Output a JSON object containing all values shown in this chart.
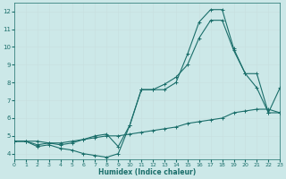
{
  "bg_color": "#cce8e8",
  "grid_color": "#afd4d4",
  "line_color": "#1a6e6a",
  "marker": "+",
  "xlabel": "Humidex (Indice chaleur)",
  "xlim": [
    0,
    23
  ],
  "ylim": [
    3.7,
    12.5
  ],
  "xticks": [
    0,
    1,
    2,
    3,
    4,
    5,
    6,
    7,
    8,
    9,
    10,
    11,
    12,
    13,
    14,
    15,
    16,
    17,
    18,
    19,
    20,
    21,
    22,
    23
  ],
  "yticks": [
    4,
    5,
    6,
    7,
    8,
    9,
    10,
    11,
    12
  ],
  "curve1_x": [
    0,
    1,
    2,
    3,
    4,
    5,
    6,
    7,
    8,
    9,
    10,
    11,
    12,
    13,
    14,
    15,
    16,
    17,
    18,
    19,
    20,
    21,
    22,
    23
  ],
  "curve1_y": [
    4.7,
    4.7,
    4.4,
    4.5,
    4.3,
    4.2,
    4.0,
    3.9,
    3.8,
    4.0,
    5.6,
    7.6,
    7.6,
    7.6,
    8.0,
    9.6,
    11.4,
    12.1,
    12.1,
    9.9,
    8.5,
    7.7,
    6.3,
    6.3
  ],
  "curve2_x": [
    0,
    1,
    2,
    3,
    4,
    5,
    6,
    7,
    8,
    9,
    10,
    11,
    12,
    13,
    14,
    15,
    16,
    17,
    18,
    19,
    20,
    21,
    22,
    23
  ],
  "curve2_y": [
    4.7,
    4.7,
    4.5,
    4.6,
    4.5,
    4.6,
    4.8,
    5.0,
    5.1,
    4.4,
    5.6,
    7.6,
    7.6,
    7.9,
    8.3,
    9.0,
    10.5,
    11.5,
    11.5,
    9.8,
    8.5,
    8.5,
    6.3,
    7.7
  ],
  "curve3_x": [
    0,
    1,
    2,
    3,
    4,
    5,
    6,
    7,
    8,
    9,
    10,
    11,
    12,
    13,
    14,
    15,
    16,
    17,
    18,
    19,
    20,
    21,
    22,
    23
  ],
  "curve3_y": [
    4.7,
    4.7,
    4.7,
    4.6,
    4.6,
    4.7,
    4.8,
    4.9,
    5.0,
    5.0,
    5.1,
    5.2,
    5.3,
    5.4,
    5.5,
    5.7,
    5.8,
    5.9,
    6.0,
    6.3,
    6.4,
    6.5,
    6.5,
    6.3
  ]
}
